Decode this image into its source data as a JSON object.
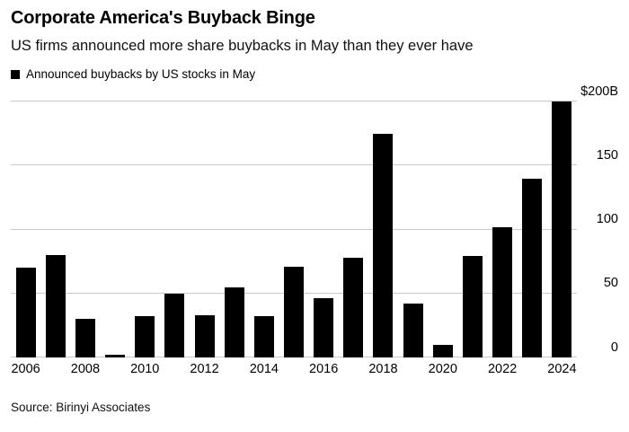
{
  "header": {
    "title": "Corporate America's Buyback Binge",
    "subtitle": "US firms announced more share buybacks in May than they ever have"
  },
  "legend": {
    "label": "Announced buybacks by US stocks in May",
    "marker_color": "#000000"
  },
  "source": "Source: Birinyi Associates",
  "colors": {
    "bar": "#000000",
    "gridline": "#c9c9c9",
    "background": "#ffffff",
    "text": "#000000"
  },
  "chart_data": {
    "type": "bar",
    "title": "Announced buybacks by US stocks in May",
    "unit": "billion USD",
    "categories": [
      2006,
      2007,
      2008,
      2009,
      2010,
      2011,
      2012,
      2013,
      2014,
      2015,
      2016,
      2017,
      2018,
      2019,
      2020,
      2021,
      2022,
      2023,
      2024
    ],
    "values": [
      70,
      80,
      30,
      2,
      32,
      50,
      33,
      55,
      32,
      71,
      46,
      78,
      175,
      42,
      10,
      79,
      102,
      140,
      200
    ],
    "ylim": [
      0,
      200
    ],
    "y_ticks": [
      {
        "value": 200,
        "label": "$200B"
      },
      {
        "value": 150,
        "label": "150"
      },
      {
        "value": 100,
        "label": "100"
      },
      {
        "value": 50,
        "label": "50"
      },
      {
        "value": 0,
        "label": "0"
      }
    ],
    "x_tick_labels": [
      "2006",
      "2008",
      "2010",
      "2012",
      "2014",
      "2016",
      "2018",
      "2020",
      "2022",
      "2024"
    ],
    "grid": true,
    "axis_side": "right",
    "legend_position": "top-left"
  }
}
